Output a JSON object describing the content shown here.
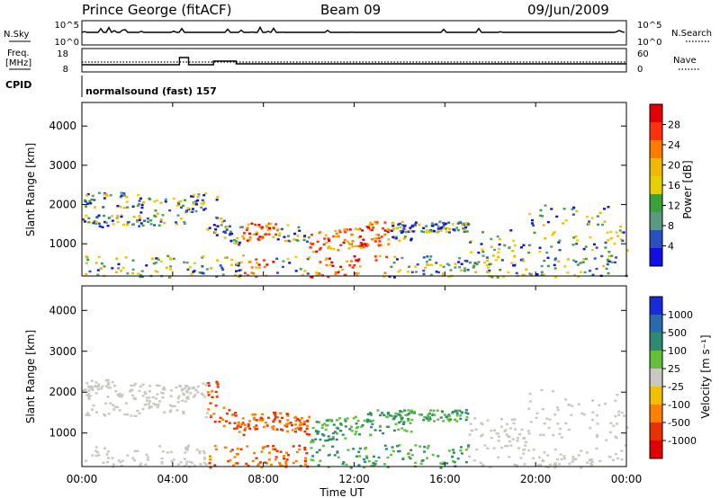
{
  "header": {
    "title": "Prince George (fitACF)",
    "beam": "Beam 09",
    "date": "09/Jun/2009"
  },
  "top_panel": {
    "left_label": "N.Sky",
    "left_ticks": [
      "10^5",
      "10^0"
    ],
    "right_ticks": [
      "10^5",
      "10^0"
    ],
    "right_label": "N.Search"
  },
  "freq_panel": {
    "left_label_1": "Freq.",
    "left_label_2": "[MHz]",
    "left_ticks": [
      "18",
      "8"
    ],
    "right_ticks": [
      "60",
      "0"
    ],
    "right_label": "Nave"
  },
  "cpid": {
    "label": "CPID",
    "text": "normalsound (fast) 157"
  },
  "chart_data": [
    {
      "type": "heatmap",
      "quantity": "Power",
      "ylabel": "Slant Range [km]",
      "yticks": [
        1000,
        2000,
        3000,
        4000
      ],
      "ylim": [
        180,
        4600
      ],
      "colorbar_label": "Power [dB]",
      "colorbar_ticks": [
        "28",
        "24",
        "20",
        "16",
        "12",
        "8",
        "4"
      ],
      "colorbar_colors": [
        "#e40000",
        "#ff3010",
        "#ff7a00",
        "#f0b800",
        "#e8d000",
        "#3ca038",
        "#5a9a80",
        "#2850c0",
        "#1010e0"
      ]
    },
    {
      "type": "heatmap",
      "quantity": "Velocity",
      "ylabel": "Slant Range [km]",
      "yticks": [
        1000,
        2000,
        3000,
        4000
      ],
      "ylim": [
        180,
        4600
      ],
      "colorbar_label": "Velocity [m s⁻¹]",
      "colorbar_ticks": [
        "1000",
        "500",
        "100",
        "25",
        "-25",
        "-100",
        "-500",
        "-1000"
      ],
      "colorbar_colors": [
        "#1a2ad8",
        "#2a6ab0",
        "#2e8a70",
        "#60c038",
        "#c8c8c0",
        "#f0c000",
        "#ff8000",
        "#e83000",
        "#e00000"
      ]
    }
  ],
  "x_axis": {
    "ticks": [
      "00:00",
      "04:00",
      "08:00",
      "12:00",
      "16:00",
      "20:00",
      "00:00"
    ],
    "label": "Time UT"
  }
}
